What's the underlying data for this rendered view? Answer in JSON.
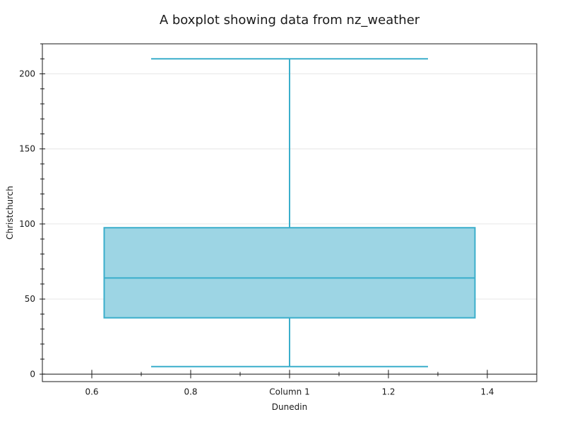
{
  "chart_data": {
    "type": "boxplot",
    "title": "A boxplot showing data from nz_weather",
    "xlabel": "Dunedin",
    "ylabel": "Christchurch",
    "xlim": [
      0.5,
      1.5
    ],
    "ylim": [
      -5,
      220
    ],
    "x_ticks": [
      {
        "value": 0.6,
        "label": "0.6"
      },
      {
        "value": 0.8,
        "label": "0.8"
      },
      {
        "value": 1.0,
        "label": "Column 1"
      },
      {
        "value": 1.2,
        "label": "1.2"
      },
      {
        "value": 1.4,
        "label": "1.4"
      }
    ],
    "x_minor_ticks": [
      0.7,
      0.9,
      1.1,
      1.3
    ],
    "y_ticks": [
      0,
      50,
      100,
      150,
      200
    ],
    "y_minor_step": 10,
    "grid": "horizontal",
    "boxes": [
      {
        "position": 1.0,
        "box_left": 0.625,
        "box_right": 1.375,
        "cap_left": 0.72,
        "cap_right": 1.28,
        "whisker_low": 5,
        "q1": 37.5,
        "median": 64,
        "q3": 97.5,
        "whisker_high": 210
      }
    ],
    "colors": {
      "box_fill": "#9dd5e4",
      "box_edge": "#3aaecb",
      "whisker": "#3aaecb",
      "grid": "#e6e6e6",
      "axis": "#1a1a1a"
    }
  }
}
